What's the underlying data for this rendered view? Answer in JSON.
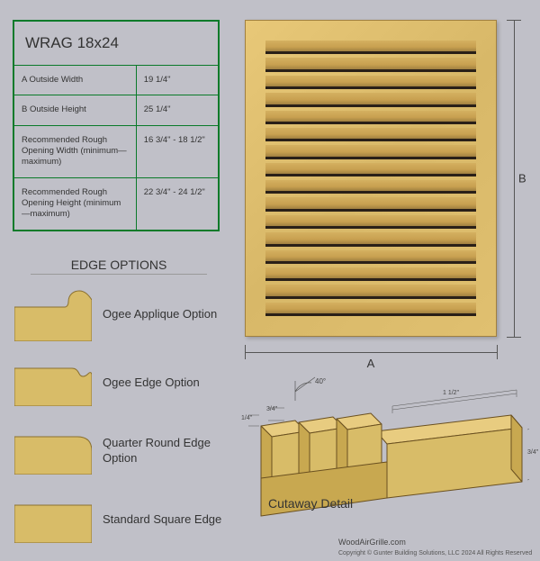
{
  "product": {
    "title": "WRAG 18x24",
    "specs": [
      {
        "label": "A  Outside Width",
        "value": "19 1/4\""
      },
      {
        "label": "B  Outside Height",
        "value": "25 1/4\""
      },
      {
        "label": "Recommended Rough Opening Width (minimum—maximum)",
        "value": "16 3/4\" - 18 1/2\""
      },
      {
        "label": "Recommended Rough Opening Height (minimum—maximum)",
        "value": "22 3/4\" - 24 1/2\""
      }
    ]
  },
  "grille": {
    "slat_count": 16,
    "wood_light": "#e8c878",
    "wood_mid": "#d8b868",
    "wood_dark": "#a08040",
    "slat_shadow": "#2a2018",
    "dim_a_label": "A",
    "dim_b_label": "B"
  },
  "edge_options": {
    "title": "EDGE OPTIONS",
    "items": [
      {
        "label": "Ogee Applique Option",
        "profile": "ogee_applique"
      },
      {
        "label": "Ogee Edge Option",
        "profile": "ogee_edge"
      },
      {
        "label": "Quarter Round Edge Option",
        "profile": "quarter_round"
      },
      {
        "label": "Standard Square Edge",
        "profile": "square"
      }
    ],
    "swatch_fill": "#d8bc68",
    "swatch_stroke": "#8a7030"
  },
  "cutaway": {
    "label": "Cutaway Detail",
    "angle": "40°",
    "dims": {
      "left1": "1/4\"",
      "left2": "3/4\"",
      "right_w": "1 1/2\"",
      "right_h": "3/4\""
    },
    "fill_top": "#e8cc80",
    "fill_side": "#c8a850",
    "fill_front": "#d8bc68",
    "stroke": "#6a5020"
  },
  "footer": {
    "site": "WoodAirGrille.com",
    "copyright": "Copyright © Gunter Building Solutions, LLC 2024 All Rights Reserved"
  },
  "colors": {
    "page_bg": "#c0c0c8",
    "table_border": "#0a7a2a",
    "text": "#333333",
    "dim_line": "#555555"
  }
}
